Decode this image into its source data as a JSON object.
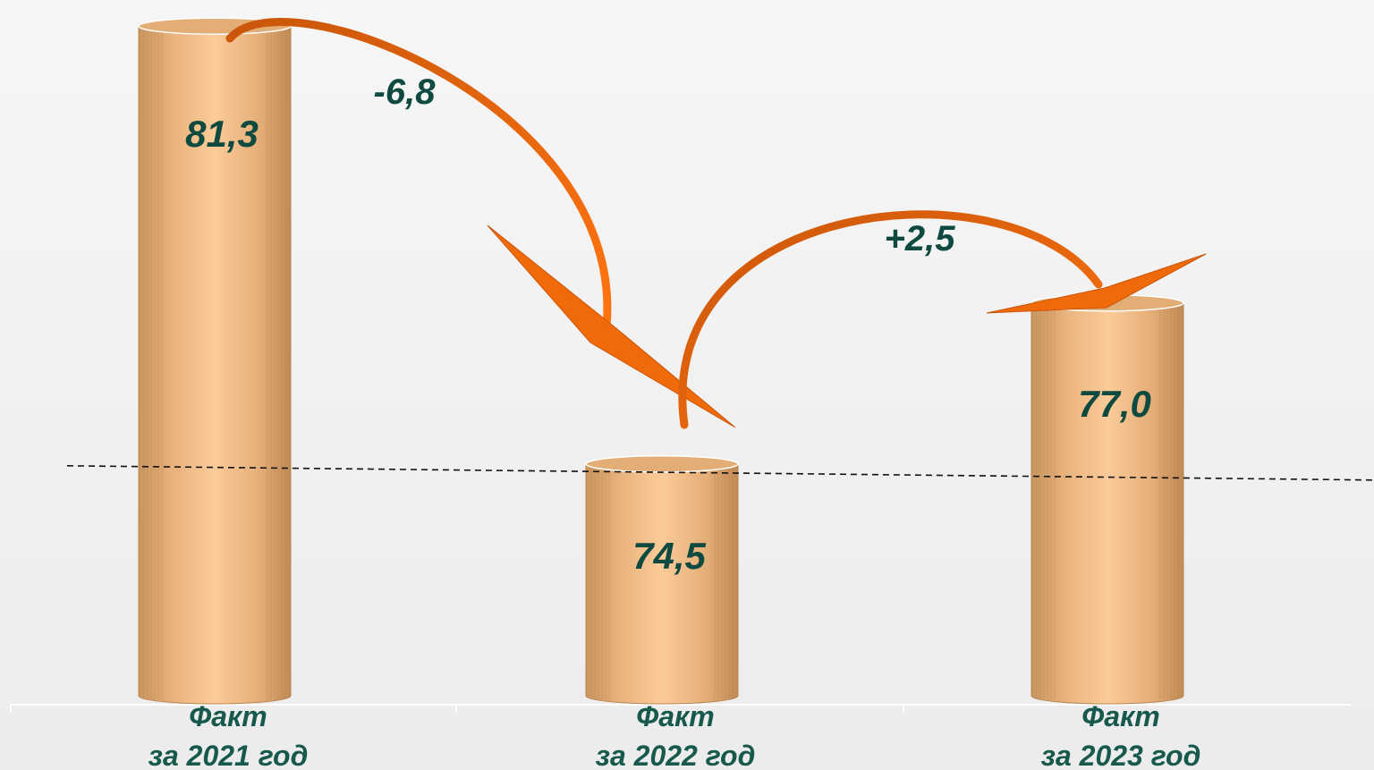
{
  "chart_data": {
    "type": "bar",
    "categories": [
      [
        "Факт",
        "за 2021 год"
      ],
      [
        "Факт",
        "за 2022 год"
      ],
      [
        "Факт",
        "за 2023 год"
      ]
    ],
    "values": [
      81.3,
      74.5,
      77.0
    ],
    "value_labels": [
      "81,3",
      "74,5",
      "77,0"
    ],
    "changes": [
      {
        "from": 0,
        "to": 1,
        "label": "-6,8"
      },
      {
        "from": 1,
        "to": 2,
        "label": "+2,5"
      }
    ],
    "reference_line": {
      "style": "dashed"
    },
    "legend": "none",
    "grid": false,
    "colors": {
      "bar_light": "#f9c796",
      "bar_dark": "#c9955f",
      "arrow": "#f06a0a",
      "arrow_dark": "#b54a05",
      "label": "#0e4a3f"
    }
  }
}
